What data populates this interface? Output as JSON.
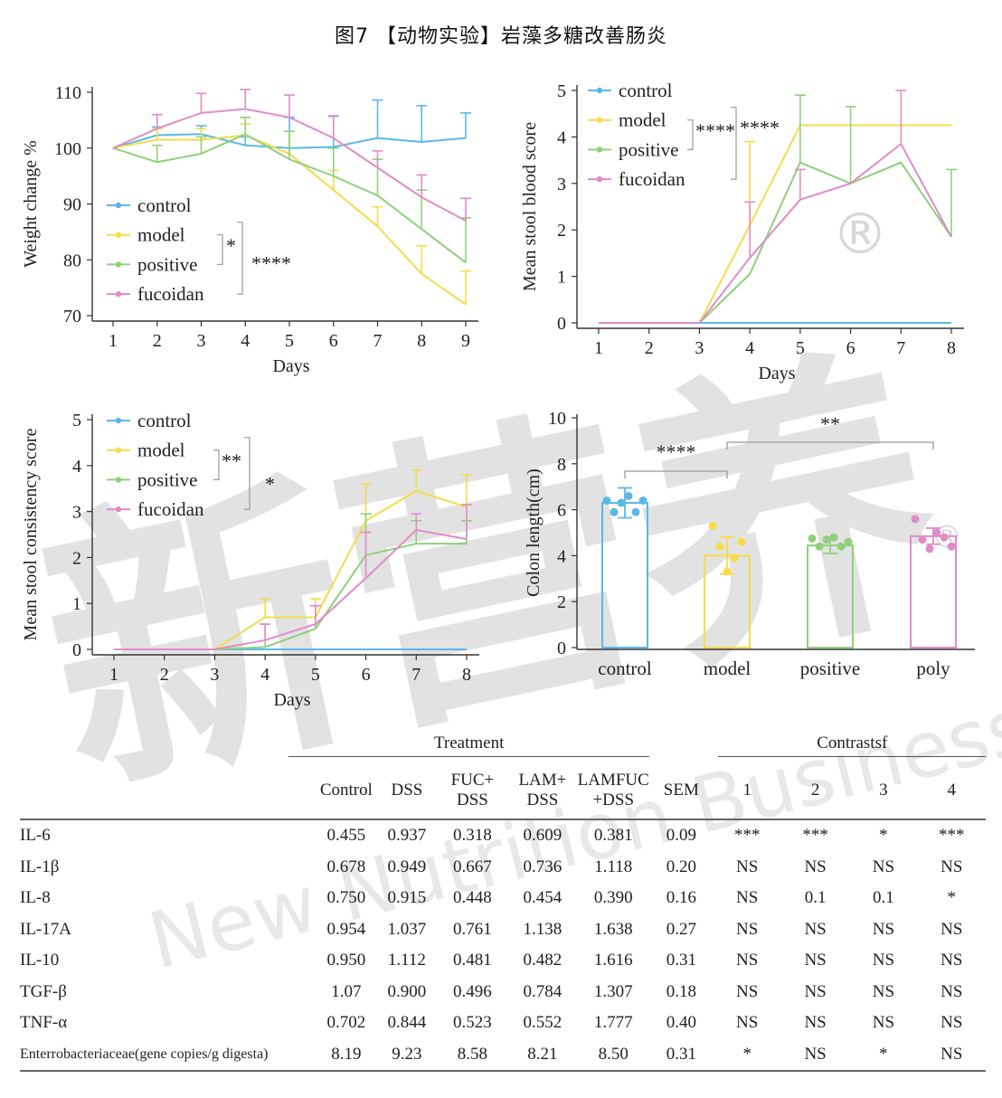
{
  "page_title": "图7 【动物实验】岩藻多糖改善肠炎",
  "watermark": {
    "text": "新营养",
    "mark": "®",
    "subtext": "New Nutrition Business"
  },
  "colors": {
    "control": "#5bb8e6",
    "model": "#f5dc4a",
    "positive": "#8fd07c",
    "fucoidan": "#e08cc8",
    "poly": "#e08cc8",
    "axis": "#333333",
    "bracket": "#999999"
  },
  "chart_data": [
    {
      "type": "line",
      "ylabel": "Weight change %",
      "xlabel": "Days",
      "x": [
        1,
        2,
        3,
        4,
        5,
        6,
        7,
        8,
        9
      ],
      "xlim": [
        1,
        9
      ],
      "ylim": [
        70,
        110
      ],
      "yticks": [
        70,
        80,
        90,
        100,
        110
      ],
      "legend": "bottom-left",
      "series": [
        {
          "name": "control",
          "values": [
            100,
            102.3,
            102.5,
            100.5,
            100,
            100.2,
            101.8,
            101.1,
            101.8
          ],
          "err": [
            0,
            1.5,
            1.5,
            1.5,
            5.5,
            5.5,
            6.8,
            6.5,
            4.5
          ]
        },
        {
          "name": "model",
          "values": [
            100,
            101.5,
            101.5,
            102.3,
            99,
            92.5,
            86,
            77.5,
            72
          ],
          "err": [
            0,
            2,
            2,
            2,
            4,
            3.5,
            3.5,
            5,
            6
          ]
        },
        {
          "name": "positive",
          "values": [
            100,
            97.5,
            99,
            102.5,
            98,
            95,
            91.5,
            85.5,
            79.5
          ],
          "err": [
            0,
            3,
            3,
            3,
            5,
            5,
            6.5,
            7,
            8
          ]
        },
        {
          "name": "fucoidan",
          "values": [
            100,
            103.5,
            106.3,
            107,
            105.5,
            101.8,
            96.5,
            91.2,
            87
          ],
          "err": [
            0,
            2.5,
            3.5,
            3.5,
            4,
            4,
            3,
            4,
            4
          ]
        }
      ],
      "annotations": [
        {
          "text": "*",
          "pairs": [
            "model",
            "positive"
          ]
        },
        {
          "text": "****",
          "pairs": [
            "model",
            "fucoidan"
          ]
        }
      ]
    },
    {
      "type": "line",
      "ylabel": "Mean stool blood score",
      "xlabel": "Days",
      "x": [
        1,
        2,
        3,
        4,
        5,
        6,
        7,
        8
      ],
      "xlim": [
        1,
        8
      ],
      "ylim": [
        0,
        5
      ],
      "yticks": [
        0,
        1,
        2,
        3,
        4,
        5
      ],
      "legend": "top-left",
      "series": [
        {
          "name": "control",
          "values": [
            0,
            0,
            0,
            0,
            0,
            0,
            0,
            0
          ],
          "err": [
            0,
            0,
            0,
            0,
            0,
            0,
            0,
            0
          ]
        },
        {
          "name": "model",
          "values": [
            0,
            0,
            0,
            2.1,
            4.25,
            4.25,
            4.25,
            4.25
          ],
          "err": [
            0,
            0,
            0,
            1.8,
            0,
            0,
            0,
            0
          ]
        },
        {
          "name": "positive",
          "values": [
            0,
            0,
            0,
            1.05,
            3.45,
            3.0,
            3.45,
            1.85
          ],
          "err": [
            0,
            0,
            0,
            0,
            1.45,
            1.65,
            0,
            1.45
          ]
        },
        {
          "name": "fucoidan",
          "values": [
            0,
            0,
            0,
            1.4,
            2.65,
            3.0,
            3.85,
            1.85
          ],
          "err": [
            0,
            0,
            0,
            1.2,
            0.65,
            0,
            1.15,
            0
          ]
        }
      ],
      "annotations": [
        {
          "text": "****",
          "pairs": [
            "model",
            "positive"
          ]
        },
        {
          "text": "****",
          "pairs": [
            "model",
            "fucoidan"
          ]
        }
      ]
    },
    {
      "type": "line",
      "ylabel": "Mean stool consistency score",
      "xlabel": "Days",
      "x": [
        1,
        2,
        3,
        4,
        5,
        6,
        7,
        8
      ],
      "xlim": [
        1,
        8
      ],
      "ylim": [
        0,
        5
      ],
      "yticks": [
        0,
        1,
        2,
        3,
        4,
        5
      ],
      "legend": "top-left",
      "series": [
        {
          "name": "control",
          "values": [
            0,
            0,
            0,
            0,
            0,
            0,
            0,
            0
          ],
          "err": [
            0,
            0,
            0,
            0,
            0,
            0,
            0,
            0
          ]
        },
        {
          "name": "model",
          "values": [
            0,
            0,
            0,
            0.7,
            0.7,
            2.8,
            3.45,
            3.1
          ],
          "err": [
            0,
            0,
            0,
            0.4,
            0.4,
            0.8,
            0.45,
            0.7
          ]
        },
        {
          "name": "positive",
          "values": [
            0,
            0,
            0,
            0.05,
            0.45,
            2.05,
            2.3,
            2.3
          ],
          "err": [
            0,
            0,
            0,
            0.5,
            0.5,
            0.9,
            0.5,
            0.5
          ]
        },
        {
          "name": "fucoidan",
          "values": [
            0,
            0,
            0,
            0.2,
            0.55,
            1.55,
            2.6,
            2.4
          ],
          "err": [
            0,
            0,
            0,
            0.35,
            0.4,
            1.0,
            0.35,
            0.75
          ]
        }
      ],
      "annotations": [
        {
          "text": "**",
          "pairs": [
            "model",
            "positive"
          ]
        },
        {
          "text": "*",
          "pairs": [
            "model",
            "fucoidan"
          ]
        }
      ]
    },
    {
      "type": "bar",
      "ylabel": "Colon length(cm)",
      "categories": [
        "control",
        "model",
        "positive",
        "poly"
      ],
      "values": [
        6.3,
        4.0,
        4.45,
        4.85
      ],
      "err": [
        0.65,
        0.8,
        0.35,
        0.35
      ],
      "ylim": [
        0,
        10
      ],
      "yticks": [
        0,
        2,
        4,
        6,
        8,
        10
      ],
      "points": [
        [
          6.4,
          5.9,
          6.3,
          6.6,
          5.9,
          6.4
        ],
        [
          5.3,
          4.4,
          3.3,
          3.9,
          4.6
        ],
        [
          4.75,
          4.4,
          4.7,
          4.8,
          4.4,
          4.6
        ],
        [
          5.6,
          4.7,
          4.3,
          5.0,
          4.8,
          4.4
        ]
      ],
      "comparisons": [
        {
          "between": [
            "control",
            "model"
          ],
          "text": "****"
        },
        {
          "between": [
            "model",
            "poly"
          ],
          "text": "**"
        }
      ]
    }
  ],
  "table": {
    "group_headers": {
      "treatment": "Treatment",
      "contrasts": "Contrastsf"
    },
    "columns": [
      "Control",
      "DSS",
      "FUC+\nDSS",
      "LAM+\nDSS",
      "LAMFUC\n+DSS",
      "SEM",
      "1",
      "2",
      "3",
      "4"
    ],
    "rows": [
      {
        "label": "IL-6",
        "cells": [
          "0.455",
          "0.937",
          "0.318",
          "0.609",
          "0.381",
          "0.09",
          "***",
          "***",
          "*",
          "***"
        ]
      },
      {
        "label": "IL-1β",
        "cells": [
          "0.678",
          "0.949",
          "0.667",
          "0.736",
          "1.118",
          "0.20",
          "NS",
          "NS",
          "NS",
          "NS"
        ]
      },
      {
        "label": "IL-8",
        "cells": [
          "0.750",
          "0.915",
          "0.448",
          "0.454",
          "0.390",
          "0.16",
          "NS",
          "0.1",
          "0.1",
          "*"
        ]
      },
      {
        "label": "IL-17A",
        "cells": [
          "0.954",
          "1.037",
          "0.761",
          "1.138",
          "1.638",
          "0.27",
          "NS",
          "NS",
          "NS",
          "NS"
        ]
      },
      {
        "label": "IL-10",
        "cells": [
          "0.950",
          "1.112",
          "0.481",
          "0.482",
          "1.616",
          "0.31",
          "NS",
          "NS",
          "NS",
          "NS"
        ]
      },
      {
        "label": "TGF-β",
        "cells": [
          "1.07",
          "0.900",
          "0.496",
          "0.784",
          "1.307",
          "0.18",
          "NS",
          "NS",
          "NS",
          "NS"
        ]
      },
      {
        "label": "TNF-α",
        "cells": [
          "0.702",
          "0.844",
          "0.523",
          "0.552",
          "1.777",
          "0.40",
          "NS",
          "NS",
          "NS",
          "NS"
        ]
      },
      {
        "label": "Enterrobacteriaceae(gene copies/g digesta)",
        "cells": [
          "8.19",
          "9.23",
          "8.58",
          "8.21",
          "8.50",
          "0.31",
          "*",
          "NS",
          "*",
          "NS"
        ]
      }
    ]
  }
}
